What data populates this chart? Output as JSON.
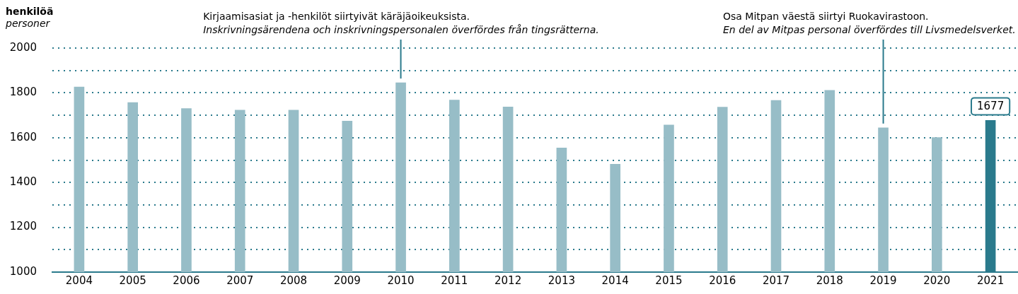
{
  "chart_data": {
    "type": "bar",
    "title": "henkilöä",
    "subtitle": "personer",
    "categories": [
      "2004",
      "2005",
      "2006",
      "2007",
      "2008",
      "2009",
      "2010",
      "2011",
      "2012",
      "2013",
      "2014",
      "2015",
      "2016",
      "2017",
      "2018",
      "2019",
      "2020",
      "2021"
    ],
    "values": [
      1826,
      1757,
      1730,
      1723,
      1723,
      1674,
      1845,
      1768,
      1737,
      1554,
      1482,
      1657,
      1736,
      1766,
      1811,
      1644,
      1601,
      1677
    ],
    "colors": [
      "#97bdc7",
      "#97bdc7",
      "#97bdc7",
      "#97bdc7",
      "#97bdc7",
      "#97bdc7",
      "#97bdc7",
      "#97bdc7",
      "#97bdc7",
      "#97bdc7",
      "#97bdc7",
      "#97bdc7",
      "#97bdc7",
      "#97bdc7",
      "#97bdc7",
      "#97bdc7",
      "#97bdc7",
      "#2a7a8c"
    ],
    "value_labels": [
      null,
      null,
      null,
      null,
      null,
      null,
      null,
      null,
      null,
      null,
      null,
      null,
      null,
      null,
      null,
      null,
      null,
      "1677"
    ],
    "ylim": [
      1000,
      2000
    ],
    "yticks": [
      1000,
      {
        "value": 1100,
        "label": null
      },
      1200,
      {
        "value": 1300,
        "label": null
      },
      1400,
      {
        "value": 1500,
        "label": null
      },
      1600,
      {
        "value": 1700,
        "label": null
      },
      1800,
      {
        "value": 1900,
        "label": null
      },
      2000
    ],
    "grid": "y",
    "annotations": [
      {
        "text": "Kirjaamisasiat ja -henkilöt siirtyivät käräjäoikeuksista.\nInskrivningsärendena och inskrivningspersonalen överfördes från tingsrätterna.",
        "x": "2010",
        "y": 1845
      },
      {
        "text": "Osa Mitpan väestä siirtyi Ruokavirastoon.\nEn del av Mitpas personal överfördes till Livsmedelsverket.",
        "x": "2019",
        "y": 1644
      }
    ]
  }
}
